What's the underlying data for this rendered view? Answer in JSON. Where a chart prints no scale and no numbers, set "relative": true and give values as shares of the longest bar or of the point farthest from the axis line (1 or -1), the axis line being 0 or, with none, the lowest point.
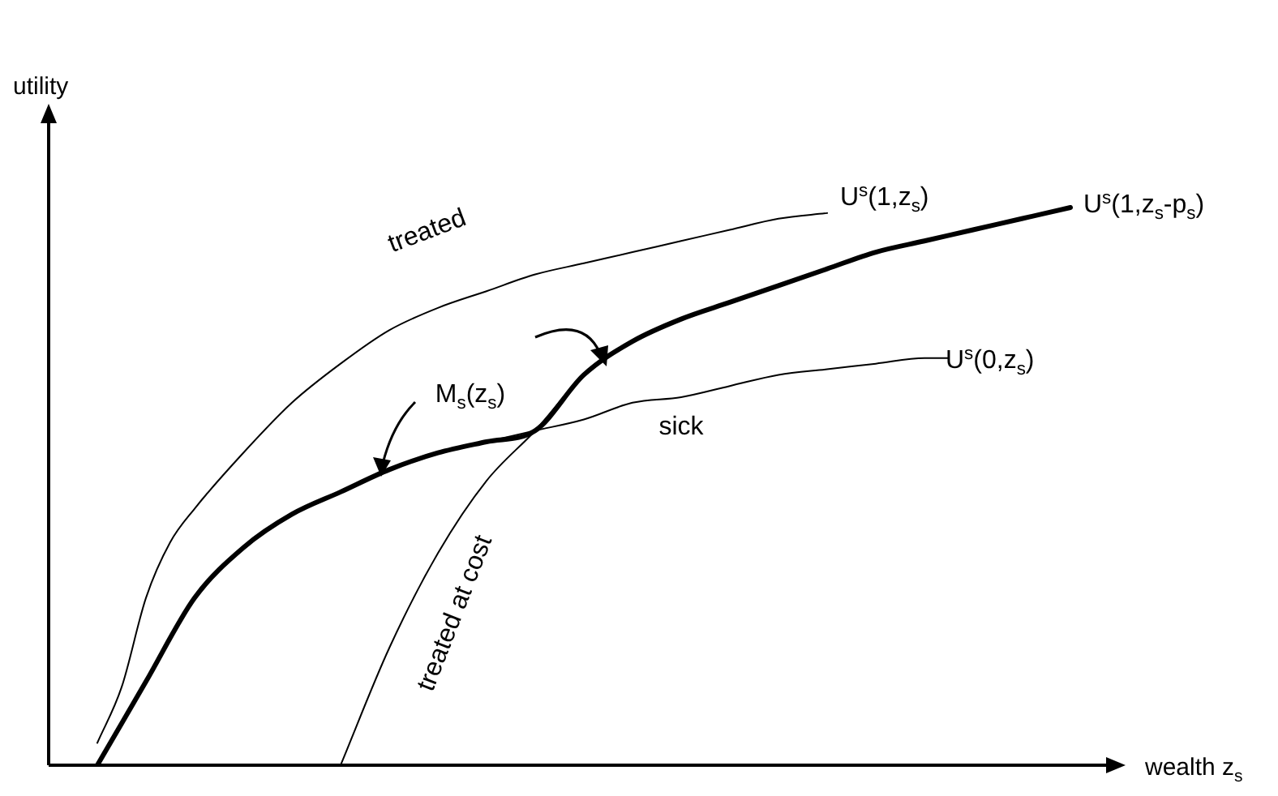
{
  "chart_data": {
    "type": "line",
    "relative": true,
    "tick_labels": false,
    "xlabel": "wealth z$_{s}$",
    "ylabel": "utility",
    "categories": [
      null,
      null,
      null,
      null,
      null,
      null,
      null,
      null,
      null,
      null,
      null,
      null,
      null,
      null,
      null,
      null,
      null,
      null,
      null,
      null,
      null,
      null,
      null,
      null,
      null,
      null,
      null,
      null,
      null,
      null,
      null,
      null,
      null,
      null,
      null,
      null,
      null,
      null,
      null,
      null,
      null,
      null,
      null,
      null,
      null
    ],
    "series": [
      {
        "name": "U$^{s}$(1,z$_{s}$)",
        "color": "#000000",
        "values": [
          null,
          null,
          0.04,
          0.14,
          0.3,
          0.4,
          0.46,
          null,
          0.56,
          null,
          0.65,
          null,
          0.72,
          null,
          0.78,
          null,
          0.82,
          null,
          0.85,
          null,
          0.88,
          null,
          0.9,
          null,
          0.92,
          null,
          0.94,
          null,
          0.96,
          null,
          0.98,
          null,
          0.99,
          null,
          null,
          null,
          null,
          null,
          null,
          null,
          null,
          null,
          null,
          null,
          null
        ]
      },
      {
        "name": "U$^{s}$(0,z$_{s}$)",
        "color": "#000000",
        "values": [
          null,
          null,
          0,
          null,
          0.15,
          null,
          0.3,
          null,
          0.39,
          null,
          0.45,
          null,
          0.49,
          null,
          0.53,
          null,
          0.56,
          null,
          0.58,
          null,
          0.6,
          null,
          0.62,
          null,
          0.65,
          null,
          0.66,
          null,
          0.68,
          null,
          0.7,
          null,
          0.71,
          null,
          0.72,
          null,
          0.73,
          0.73,
          null,
          null,
          null,
          null,
          null,
          null,
          null
        ]
      },
      {
        "name": "U$^{s}$(1,z$_{s}$-p$_{s}$)",
        "color": "#000000",
        "values": [
          null,
          null,
          null,
          null,
          null,
          null,
          null,
          null,
          null,
          null,
          null,
          null,
          0,
          null,
          0.21,
          null,
          0.38,
          null,
          0.51,
          null,
          0.6,
          null,
          0.7,
          null,
          0.76,
          null,
          0.8,
          null,
          0.83,
          null,
          0.86,
          null,
          0.89,
          null,
          0.92,
          null,
          0.94,
          null,
          0.96,
          null,
          0.98,
          null,
          1,
          null,
          null
        ]
      },
      {
        "name": "M$_{s}$(z$_{s}$)",
        "color": "#000000",
        "values": [
          null,
          null,
          0,
          null,
          0.15,
          null,
          0.3,
          null,
          0.39,
          null,
          0.45,
          null,
          0.49,
          null,
          0.53,
          null,
          0.56,
          null,
          0.58,
          null,
          0.6,
          null,
          0.7,
          null,
          0.76,
          null,
          0.8,
          null,
          0.83,
          null,
          0.86,
          null,
          0.89,
          null,
          0.92,
          null,
          0.94,
          null,
          0.96,
          null,
          0.98,
          null,
          1,
          null,
          null
        ]
      }
    ],
    "annotations": [
      "treated",
      "sick",
      "treated at cost"
    ]
  }
}
